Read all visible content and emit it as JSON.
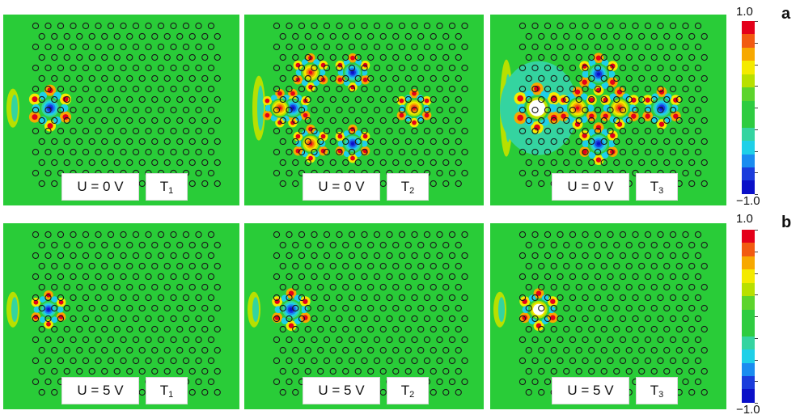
{
  "figure": {
    "rows": [
      {
        "letter": "a",
        "panels": [
          {
            "voltage": "U = 0 V",
            "mode": "T",
            "sub": "1"
          },
          {
            "voltage": "U = 0 V",
            "mode": "T",
            "sub": "2"
          },
          {
            "voltage": "U = 0 V",
            "mode": "T",
            "sub": "3"
          }
        ]
      },
      {
        "letter": "b",
        "panels": [
          {
            "voltage": "U = 5 V",
            "mode": "T",
            "sub": "1"
          },
          {
            "voltage": "U = 5 V",
            "mode": "T",
            "sub": "2"
          },
          {
            "voltage": "U = 5 V",
            "mode": "T",
            "sub": "3"
          }
        ]
      }
    ],
    "colorbar": {
      "max_label": "1.0",
      "min_label": "−1.0",
      "colors": [
        "#e4001a",
        "#f25a10",
        "#f7a800",
        "#f4ea00",
        "#b8e000",
        "#5cd42c",
        "#2ecc40",
        "#2ecc40",
        "#34d4a0",
        "#1ed0e8",
        "#1a8cf0",
        "#1a3cdc",
        "#0a10c8"
      ]
    },
    "colors": {
      "background_field": "#29cc38",
      "hole_stroke": "#1a1a1a",
      "positive": "#e4001a",
      "negative": "#0a10c8"
    }
  }
}
